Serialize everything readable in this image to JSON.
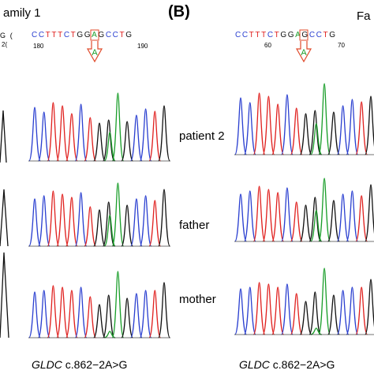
{
  "panel_a": {
    "family_label": "amily 1",
    "left_fragment": "G (",
    "left_pos_fragment": "2(",
    "sequence": "CCTTTCTGGAGCCTG",
    "position_marks": [
      "180",
      "190"
    ],
    "mutation_base": "A",
    "samples": [
      "patient 2",
      "father",
      "mother"
    ],
    "caption_gene": "GLDC",
    "caption_variant": " c.862−2A>G"
  },
  "panel_b": {
    "panel_label": "(B)",
    "family_label": "Fa",
    "sequence": "CCTTTCTGGAGCCTG",
    "position_marks": [
      "60",
      "70"
    ],
    "mutation_base": "A",
    "caption_gene": "GLDC",
    "caption_variant": " c.862−2A>G"
  },
  "colors": {
    "base_A": "#1a9e2a",
    "base_C": "#2a3fd0",
    "base_G": "#111111",
    "base_T": "#e0201e",
    "marker": "#e04a2a"
  }
}
